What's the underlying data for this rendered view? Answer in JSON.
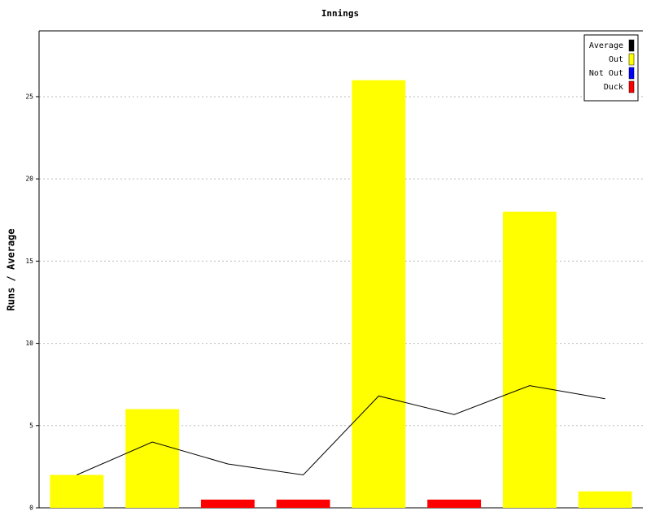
{
  "chart_data": {
    "type": "bar",
    "title": "Innings",
    "y_label": "Runs / Average",
    "categories": [
      null,
      null,
      null,
      null,
      null,
      null,
      null,
      null
    ],
    "series": [
      {
        "name": "Average",
        "type": "line",
        "color": "#000000",
        "values": [
          2,
          4,
          2.67,
          2,
          6.8,
          5.67,
          7.43,
          6.63
        ]
      },
      {
        "name": "Out",
        "color": "#ffff00",
        "values": [
          2,
          6,
          null,
          null,
          26,
          null,
          18,
          1
        ]
      },
      {
        "name": "Not Out",
        "color": "#0000ff",
        "values": [
          null,
          null,
          null,
          null,
          null,
          null,
          null,
          null
        ]
      },
      {
        "name": "Duck",
        "color": "#ff0000",
        "values": [
          null,
          null,
          0.5,
          0.5,
          null,
          0.5,
          null,
          null
        ]
      }
    ],
    "ylim": [
      0,
      29
    ],
    "yticks": [
      0,
      5,
      10,
      15,
      20,
      25
    ],
    "grid": true,
    "legend": "top-right"
  }
}
